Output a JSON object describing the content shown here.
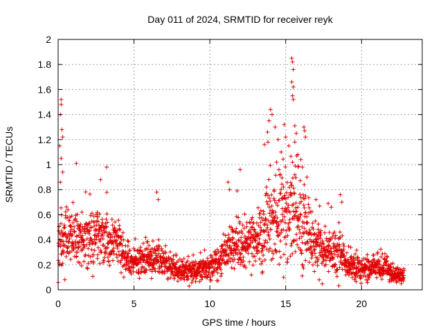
{
  "chart_data": {
    "type": "scatter",
    "title": "Day 011 of 2024, SRMTID for receiver reyk",
    "xlabel": "GPS time / hours",
    "ylabel": "SRMTID / TECUs",
    "xlim": [
      0,
      24
    ],
    "ylim": [
      0,
      2
    ],
    "x_ticks": [
      0,
      5,
      10,
      15,
      20
    ],
    "x_tick_labels": [
      "0",
      "5",
      "10",
      "15",
      "20"
    ],
    "y_ticks": [
      0,
      0.2,
      0.4,
      0.6,
      0.8,
      1,
      1.2,
      1.4,
      1.6,
      1.8,
      2
    ],
    "y_tick_labels": [
      "0",
      "0.2",
      "0.4",
      "0.6",
      "0.8",
      "1",
      "1.2",
      "1.4",
      "1.6",
      "1.8",
      "2"
    ],
    "grid": true,
    "legend": "none",
    "marker": "+",
    "marker_color": "#e00000",
    "series": [
      {
        "name": "SRMTID",
        "note": "approximate profile of the plotted data cloud (hour, typical value, spread)",
        "profile": [
          [
            0.0,
            0.35,
            0.12
          ],
          [
            0.5,
            0.42,
            0.16
          ],
          [
            1.0,
            0.4,
            0.15
          ],
          [
            1.5,
            0.38,
            0.13
          ],
          [
            2.0,
            0.42,
            0.14
          ],
          [
            2.5,
            0.43,
            0.14
          ],
          [
            3.0,
            0.4,
            0.13
          ],
          [
            3.5,
            0.38,
            0.12
          ],
          [
            4.0,
            0.36,
            0.12
          ],
          [
            4.5,
            0.25,
            0.08
          ],
          [
            5.0,
            0.22,
            0.07
          ],
          [
            5.5,
            0.24,
            0.08
          ],
          [
            6.0,
            0.23,
            0.08
          ],
          [
            6.5,
            0.25,
            0.09
          ],
          [
            7.0,
            0.22,
            0.07
          ],
          [
            7.5,
            0.18,
            0.06
          ],
          [
            8.0,
            0.16,
            0.05
          ],
          [
            8.5,
            0.14,
            0.05
          ],
          [
            9.0,
            0.15,
            0.05
          ],
          [
            9.5,
            0.17,
            0.06
          ],
          [
            10.0,
            0.18,
            0.06
          ],
          [
            10.5,
            0.22,
            0.07
          ],
          [
            11.0,
            0.3,
            0.1
          ],
          [
            11.5,
            0.34,
            0.11
          ],
          [
            12.0,
            0.36,
            0.12
          ],
          [
            12.5,
            0.35,
            0.12
          ],
          [
            13.0,
            0.38,
            0.14
          ],
          [
            13.5,
            0.45,
            0.18
          ],
          [
            14.0,
            0.55,
            0.22
          ],
          [
            14.5,
            0.58,
            0.22
          ],
          [
            15.0,
            0.62,
            0.25
          ],
          [
            15.5,
            0.65,
            0.25
          ],
          [
            16.0,
            0.55,
            0.22
          ],
          [
            16.5,
            0.45,
            0.18
          ],
          [
            17.0,
            0.35,
            0.14
          ],
          [
            17.5,
            0.3,
            0.1
          ],
          [
            18.0,
            0.28,
            0.1
          ],
          [
            18.5,
            0.3,
            0.12
          ],
          [
            19.0,
            0.22,
            0.08
          ],
          [
            19.5,
            0.18,
            0.06
          ],
          [
            20.0,
            0.17,
            0.06
          ],
          [
            20.5,
            0.17,
            0.06
          ],
          [
            21.0,
            0.2,
            0.07
          ],
          [
            21.5,
            0.18,
            0.06
          ],
          [
            22.0,
            0.14,
            0.05
          ],
          [
            22.5,
            0.11,
            0.04
          ],
          [
            22.8,
            0.1,
            0.04
          ]
        ],
        "outliers": [
          [
            0.2,
            1.52
          ],
          [
            0.2,
            1.48
          ],
          [
            0.15,
            1.4
          ],
          [
            0.25,
            1.28
          ],
          [
            0.3,
            1.22
          ],
          [
            0.1,
            1.15
          ],
          [
            0.2,
            1.05
          ],
          [
            0.3,
            0.94
          ],
          [
            0.15,
            0.86
          ],
          [
            1.2,
            1.01
          ],
          [
            3.2,
            0.98
          ],
          [
            2.8,
            0.88
          ],
          [
            6.5,
            0.78
          ],
          [
            6.6,
            0.72
          ],
          [
            11.2,
            0.86
          ],
          [
            11.3,
            0.8
          ],
          [
            11.8,
            0.79
          ],
          [
            12.0,
            0.96
          ],
          [
            13.6,
            1.16
          ],
          [
            13.8,
            1.26
          ],
          [
            13.9,
            1.35
          ],
          [
            14.0,
            1.44
          ],
          [
            14.1,
            1.4
          ],
          [
            14.3,
            1.3
          ],
          [
            14.5,
            1.2
          ],
          [
            14.7,
            1.1
          ],
          [
            14.4,
            1.02
          ],
          [
            14.9,
            1.32
          ],
          [
            15.0,
            1.22
          ],
          [
            15.2,
            1.15
          ],
          [
            15.4,
            1.85
          ],
          [
            15.45,
            1.82
          ],
          [
            15.5,
            1.76
          ],
          [
            15.4,
            1.66
          ],
          [
            15.5,
            1.62
          ],
          [
            15.45,
            1.55
          ],
          [
            15.5,
            1.52
          ],
          [
            15.6,
            1.31
          ],
          [
            15.7,
            1.25
          ],
          [
            15.6,
            1.18
          ],
          [
            15.8,
            1.08
          ],
          [
            16.0,
            1.04
          ],
          [
            16.2,
            1.3
          ],
          [
            16.25,
            1.27
          ],
          [
            16.3,
            1.22
          ],
          [
            16.1,
            0.98
          ],
          [
            16.4,
            0.9
          ],
          [
            17.0,
            0.72
          ],
          [
            17.8,
            0.69
          ],
          [
            18.0,
            0.66
          ],
          [
            18.6,
            0.76
          ],
          [
            18.7,
            0.7
          ]
        ]
      }
    ]
  }
}
